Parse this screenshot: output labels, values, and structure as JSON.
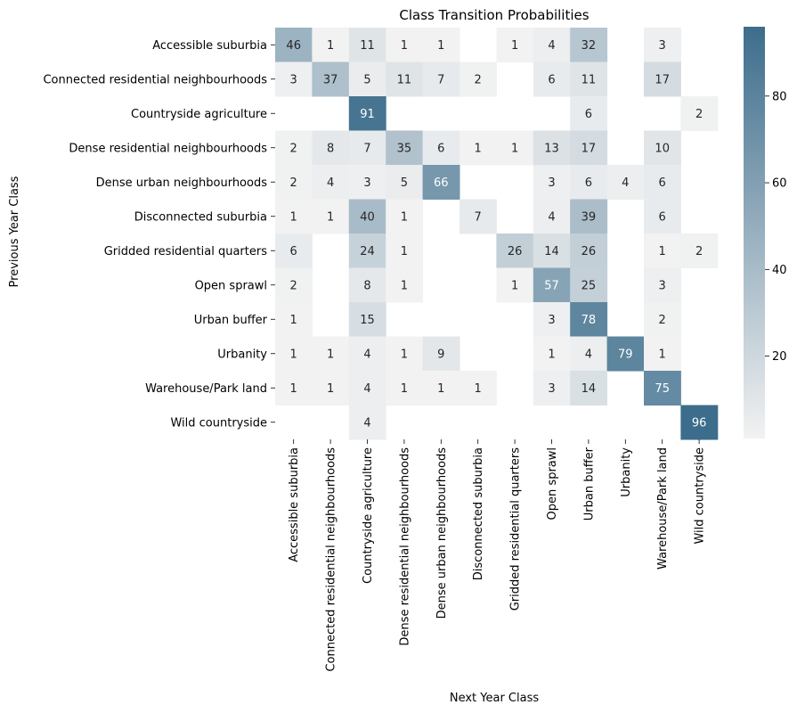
{
  "chart_data": {
    "type": "heatmap",
    "title": "Class Transition Probabilities",
    "xlabel": "Next Year Class",
    "ylabel": "Previous Year Class",
    "rows": [
      "Accessible suburbia",
      "Connected residential neighbourhoods",
      "Countryside agriculture",
      "Dense residential neighbourhoods",
      "Dense urban neighbourhoods",
      "Disconnected suburbia",
      "Gridded residential quarters",
      "Open sprawl",
      "Urban buffer",
      "Urbanity",
      "Warehouse/Park land",
      "Wild countryside"
    ],
    "columns": [
      "Accessible suburbia",
      "Connected residential neighbourhoods",
      "Countryside agriculture",
      "Dense residential neighbourhoods",
      "Dense urban neighbourhoods",
      "Disconnected suburbia",
      "Gridded residential quarters",
      "Open sprawl",
      "Urban buffer",
      "Urbanity",
      "Warehouse/Park land",
      "Wild countryside"
    ],
    "values": [
      [
        46,
        1,
        11,
        1,
        1,
        null,
        1,
        4,
        32,
        null,
        3,
        null
      ],
      [
        3,
        37,
        5,
        11,
        7,
        2,
        null,
        6,
        11,
        null,
        17,
        null
      ],
      [
        null,
        null,
        91,
        null,
        null,
        null,
        null,
        null,
        6,
        null,
        null,
        2
      ],
      [
        2,
        8,
        7,
        35,
        6,
        1,
        1,
        13,
        17,
        null,
        10,
        null
      ],
      [
        2,
        4,
        3,
        5,
        66,
        null,
        null,
        3,
        6,
        4,
        6,
        null
      ],
      [
        1,
        1,
        40,
        1,
        null,
        7,
        null,
        4,
        39,
        null,
        6,
        null
      ],
      [
        6,
        null,
        24,
        1,
        null,
        null,
        26,
        14,
        26,
        null,
        1,
        2
      ],
      [
        2,
        null,
        8,
        1,
        null,
        null,
        1,
        57,
        25,
        null,
        3,
        null
      ],
      [
        1,
        null,
        15,
        null,
        null,
        null,
        null,
        3,
        78,
        null,
        2,
        null
      ],
      [
        1,
        1,
        4,
        1,
        9,
        null,
        null,
        1,
        4,
        79,
        1,
        null
      ],
      [
        1,
        1,
        4,
        1,
        1,
        1,
        null,
        3,
        14,
        null,
        75,
        null
      ],
      [
        null,
        null,
        4,
        null,
        null,
        null,
        null,
        null,
        null,
        null,
        null,
        96
      ]
    ],
    "colorbar": {
      "ticks": [
        20,
        40,
        60,
        80
      ],
      "range": [
        1,
        96
      ],
      "low_color": "#f2f2f2",
      "high_color": "#3d6d8c"
    },
    "grid": false
  }
}
